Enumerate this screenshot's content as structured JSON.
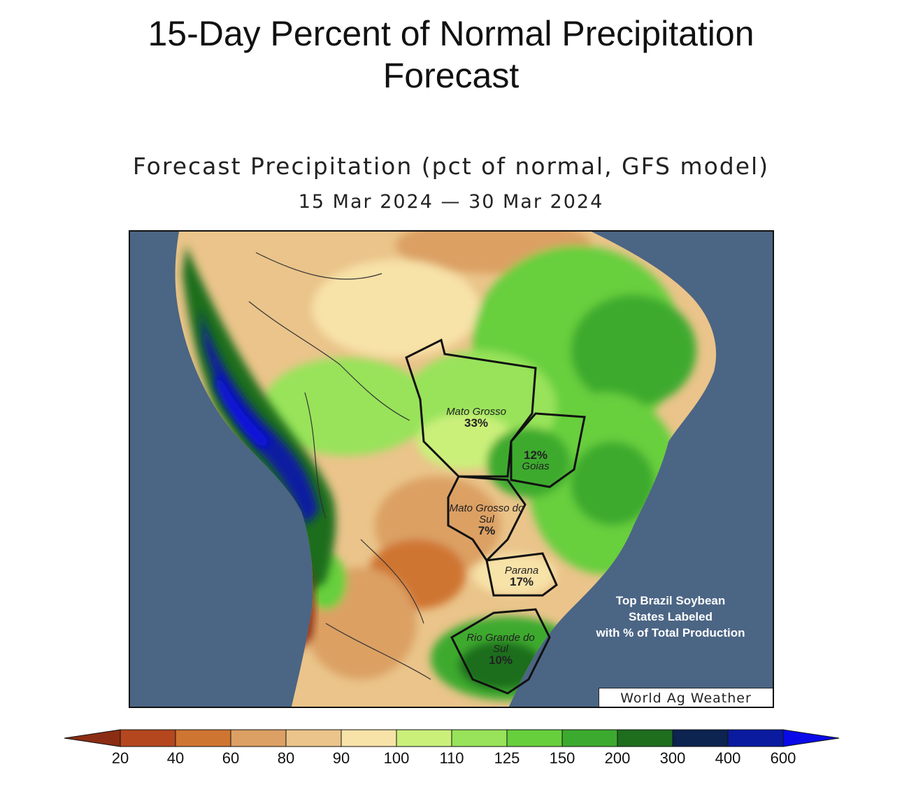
{
  "page_title_line1": "15-Day Percent of Normal Precipitation",
  "page_title_line2": "Forecast",
  "map": {
    "title": "Forecast Precipitation (pct of normal, GFS model)",
    "date_range": "15 Mar 2024 — 30 Mar 2024",
    "states": [
      {
        "name": "Mato Grosso",
        "pct": "33%"
      },
      {
        "name": "Goias",
        "pct": "12%"
      },
      {
        "name": "Mato Grosso do Sul",
        "pct": "7%"
      },
      {
        "name": "Parana",
        "pct": "17%"
      },
      {
        "name": "Rio Grande do Sul",
        "pct": "10%"
      }
    ],
    "note_line1": "Top Brazil Soybean",
    "note_line2": "States Labeled",
    "note_line3": "with % of Total Production",
    "credit": "World Ag Weather",
    "colors": {
      "ocean": "#4b6584"
    }
  },
  "legend": {
    "labels": [
      "20",
      "40",
      "60",
      "80",
      "90",
      "100",
      "110",
      "125",
      "150",
      "200",
      "300",
      "400",
      "600"
    ],
    "colors": [
      "#8b2d14",
      "#b4471e",
      "#cf7532",
      "#dca064",
      "#eac48a",
      "#f7e2a8",
      "#caf07a",
      "#98e35a",
      "#67cf3c",
      "#3caa2e",
      "#1e6e1e",
      "#0d2350",
      "#0a1ba0",
      "#0a0ae8"
    ]
  }
}
